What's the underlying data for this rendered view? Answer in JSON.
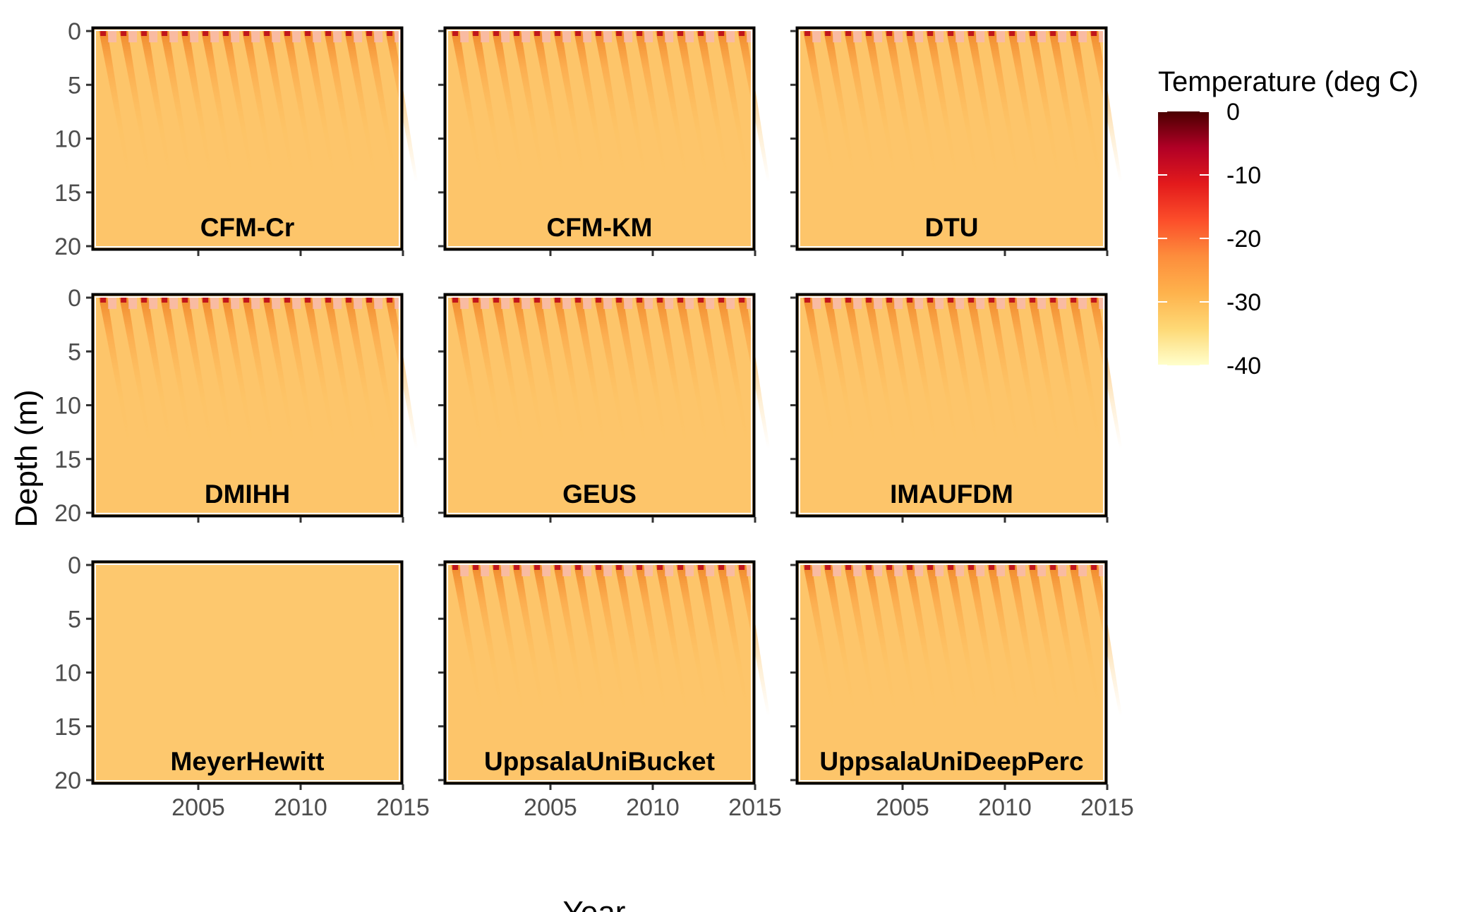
{
  "chart_data": {
    "type": "heatmap",
    "xlabel": "Year",
    "ylabel": "Depth (m)",
    "x_range": [
      2000,
      2015
    ],
    "x_ticks": [
      2005,
      2010,
      2015
    ],
    "y_range": [
      0,
      20
    ],
    "y_ticks": [
      0,
      5,
      10,
      15,
      20
    ],
    "y_reversed": true,
    "legend": {
      "title": "Temperature (deg C)",
      "ticks": [
        0,
        -10,
        -20,
        -30,
        -40
      ],
      "range": [
        -40,
        0
      ],
      "placement": "right",
      "colors": [
        "#FFFFCC",
        "#FED976",
        "#FEB24C",
        "#FD8D3C",
        "#FC4E2A",
        "#E31A1C",
        "#B10026",
        "#4A0000"
      ]
    },
    "panels": [
      {
        "name": "CFM-Cr",
        "seasonal_signal": true
      },
      {
        "name": "CFM-KM",
        "seasonal_signal": true
      },
      {
        "name": "DTU",
        "seasonal_signal": true
      },
      {
        "name": "DMIHH",
        "seasonal_signal": true
      },
      {
        "name": "GEUS",
        "seasonal_signal": true
      },
      {
        "name": "IMAUFDM",
        "seasonal_signal": true
      },
      {
        "name": "MeyerHewitt",
        "seasonal_signal": false
      },
      {
        "name": "UppsalaUniBucket",
        "seasonal_signal": true
      },
      {
        "name": "UppsalaUniDeepPerc",
        "seasonal_signal": true
      }
    ],
    "background_temperature": -24,
    "grid": false
  }
}
